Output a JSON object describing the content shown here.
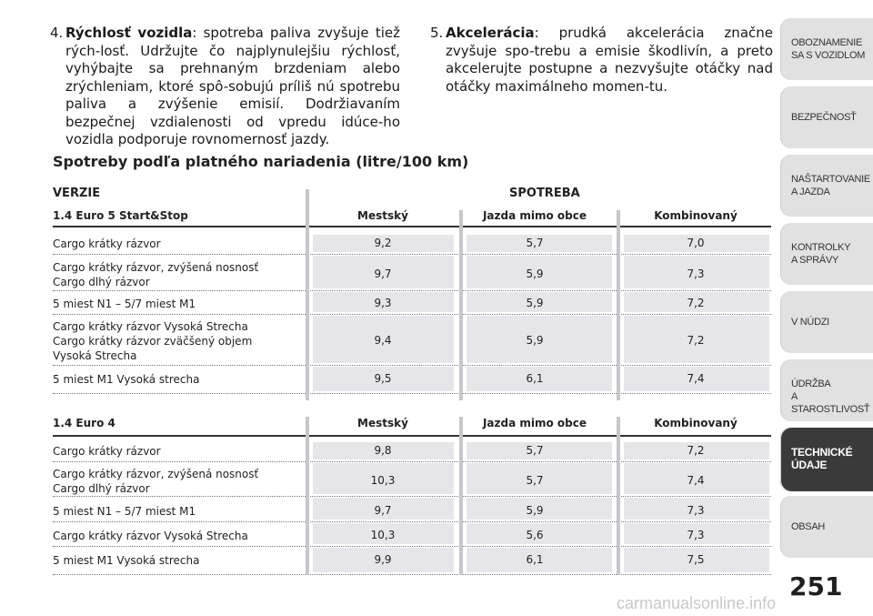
{
  "text": {
    "p4": {
      "number": "4.",
      "lead": "Rýchlosť vozidla",
      "body": ": spotreba paliva zvyšuje tiež rých-losť. Udržujte čo najplynulejšiu rýchlosť, vyhýbajte sa prehnaným brzdeniam alebo zrýchleniam, ktoré spô-sobujú príliš nú spotrebu paliva a zvýšenie emisií. Dodržiavaním bezpečnej vzdialenosti od vpredu idúce-ho vozidla podporuje rovnomernosť jazdy."
    },
    "p5": {
      "number": "5.",
      "lead": "Akcelerácia",
      "body": ": prudká akcelerácia značne zvyšuje spo-trebu a emisie škodlivín, a preto akcelerujte postupne a nezvyšujte otáčky nad otáčky maximálneho momen-tu."
    }
  },
  "table": {
    "title": "Spotreby podľa platného nariadenia (litre/100 km)",
    "versions_header": "VERZIE",
    "consumption_header": "SPOTREBA",
    "sections": [
      {
        "engine": "1.4 Euro 5 Start&Stop",
        "columns": [
          "Mestský",
          "Jazda mimo obce",
          "Kombinovaný"
        ],
        "rows": [
          {
            "label": "Cargo krátky rázvor",
            "city": "9,2",
            "extra": "5,7",
            "combined": "7,0"
          },
          {
            "label": "Cargo krátky rázvor, zvýšená nosnosť\nCargo dlhý rázvor",
            "city": "9,7",
            "extra": "5,9",
            "combined": "7,3"
          },
          {
            "label": "5 miest N1 – 5/7 miest M1",
            "city": "9,3",
            "extra": "5,9",
            "combined": "7,2"
          },
          {
            "label": "Cargo krátky rázvor Vysoká Strecha\nCargo krátky rázvor zväčšený objem\nVysoká Strecha",
            "city": "9,4",
            "extra": "5,9",
            "combined": "7,2"
          },
          {
            "label": "5 miest M1 Vysoká strecha",
            "city": "9,5",
            "extra": "6,1",
            "combined": "7,4"
          }
        ]
      },
      {
        "engine": "1.4 Euro 4",
        "columns": [
          "Mestský",
          "Jazda mimo obce",
          "Kombinovaný"
        ],
        "rows": [
          {
            "label": "Cargo krátky rázvor",
            "city": "9,8",
            "extra": "5,7",
            "combined": "7,2"
          },
          {
            "label": "Cargo krátky rázvor, zvýšená nosnosť\nCargo dlhý rázvor",
            "city": "10,3",
            "extra": "5,7",
            "combined": "7,4"
          },
          {
            "label": "5 miest N1 – 5/7 miest M1",
            "city": "9,7",
            "extra": "5,9",
            "combined": "7,3"
          },
          {
            "label": "Cargo krátky rázvor Vysoká Strecha",
            "city": "10,3",
            "extra": "5,6",
            "combined": "7,3"
          },
          {
            "label": "5 miest M1 Vysoká strecha",
            "city": "9,9",
            "extra": "6,1",
            "combined": "7,5"
          }
        ]
      }
    ]
  },
  "tabs": [
    {
      "label": "OBOZNAMENIE\nSA S VOZIDLOM",
      "active": false
    },
    {
      "label": "BEZPEČNOSŤ",
      "active": false
    },
    {
      "label": "NAŠTARTOVANIE\nA JAZDA",
      "active": false
    },
    {
      "label": "KONTROLKY\nA SPRÁVY",
      "active": false
    },
    {
      "label": "V NÚDZI",
      "active": false
    },
    {
      "label": "ÚDRŽBA\nA STAROSTLIVOSŤ",
      "active": false
    },
    {
      "label": "TECHNICKÉ\nÚDAJE",
      "active": true
    },
    {
      "label": "OBSAH",
      "active": false
    }
  ],
  "page_number": "251",
  "watermark": "carmanualsonline.info",
  "colors": {
    "active_tab": "#3a3a3a",
    "inactive_tab": "#e1e1e1",
    "cell_shade": "#e6e6ea"
  }
}
